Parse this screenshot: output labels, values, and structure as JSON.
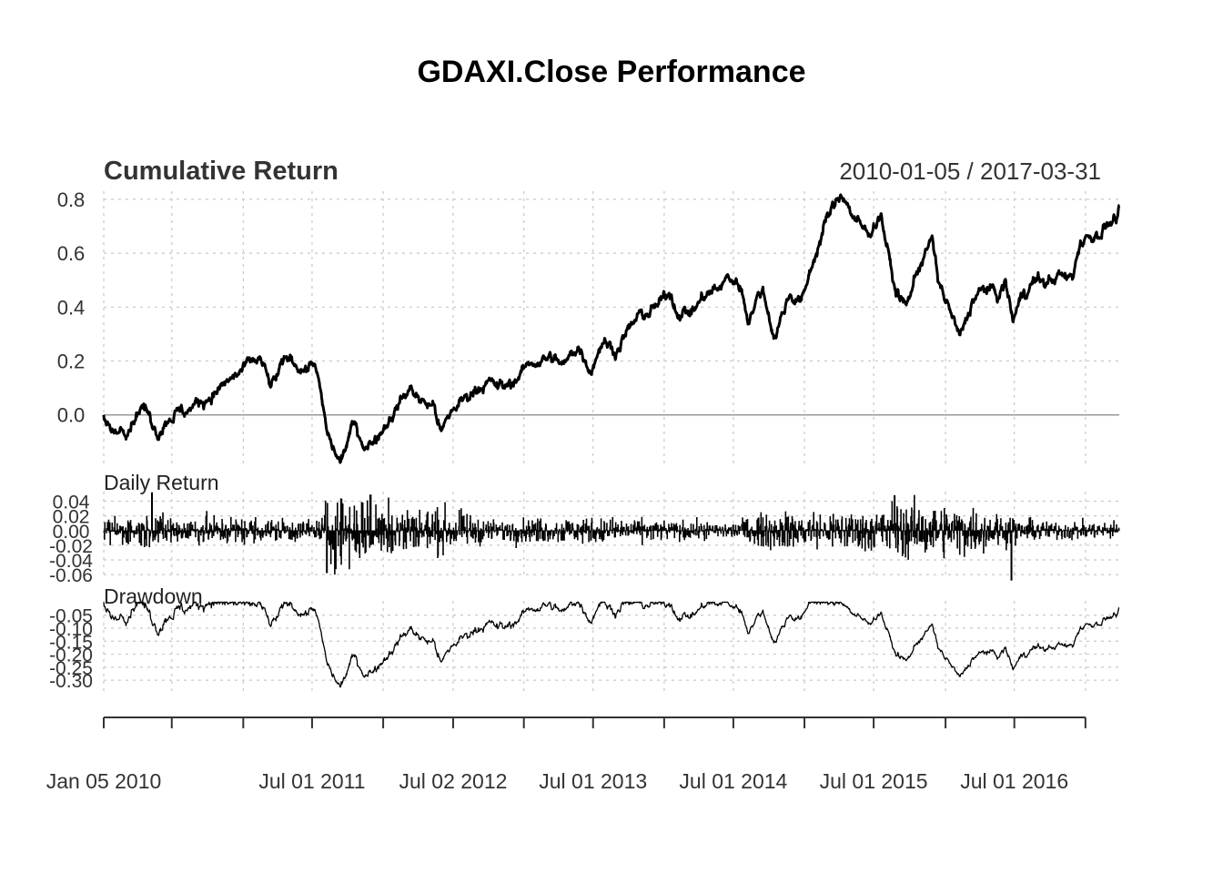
{
  "chart_data": {
    "type": "line",
    "title": "GDAXI.Close Performance",
    "date_range": "2010-01-05 / 2017-03-31",
    "x_start": "2010-01-05",
    "x_end": "2017-03-31",
    "x_tick_labels": [
      {
        "date": "2010-01-05",
        "label": "Jan 05 2010"
      },
      {
        "date": "2011-07-01",
        "label": "Jul 01 2011"
      },
      {
        "date": "2012-07-02",
        "label": "Jul 02 2012"
      },
      {
        "date": "2013-07-01",
        "label": "Jul 01 2013"
      },
      {
        "date": "2014-07-01",
        "label": "Jul 01 2014"
      },
      {
        "date": "2015-07-01",
        "label": "Jul 01 2015"
      },
      {
        "date": "2016-07-01",
        "label": "Jul 01 2016"
      }
    ],
    "x_tick_marks": [
      "2010-01-05",
      "2010-07-01",
      "2011-01-03",
      "2011-07-01",
      "2012-01-02",
      "2012-07-02",
      "2013-01-02",
      "2013-07-01",
      "2014-01-02",
      "2014-07-01",
      "2015-01-02",
      "2015-07-01",
      "2016-01-04",
      "2016-07-01",
      "2017-01-02"
    ],
    "panels": [
      {
        "name": "Cumulative Return",
        "ylim": [
          -0.19,
          0.83
        ],
        "y_ticks": [
          0.8,
          0.6,
          0.4,
          0.2,
          0.0
        ],
        "y_tick_labels": [
          "0.8",
          "0.6",
          "0.4",
          "0.2",
          "0.0"
        ],
        "series": [
          {
            "values": [
              [
                "2010-01-05",
                0.0
              ],
              [
                "2010-02-05",
                -0.09
              ],
              [
                "2010-03-15",
                -0.02
              ],
              [
                "2010-04-15",
                0.04
              ],
              [
                "2010-05-25",
                -0.06
              ],
              [
                "2010-06-25",
                0.0
              ],
              [
                "2010-08-15",
                0.02
              ],
              [
                "2010-09-15",
                0.05
              ],
              [
                "2010-10-15",
                0.08
              ],
              [
                "2010-11-15",
                0.11
              ],
              [
                "2010-12-20",
                0.15
              ],
              [
                "2011-01-25",
                0.19
              ],
              [
                "2011-02-15",
                0.21
              ],
              [
                "2011-03-16",
                0.1
              ],
              [
                "2011-04-15",
                0.18
              ],
              [
                "2011-05-02",
                0.21
              ],
              [
                "2011-06-15",
                0.17
              ],
              [
                "2011-07-08",
                0.2
              ],
              [
                "2011-08-10",
                -0.08
              ],
              [
                "2011-09-12",
                -0.18
              ],
              [
                "2011-10-15",
                -0.04
              ],
              [
                "2011-11-23",
                -0.12
              ],
              [
                "2011-12-30",
                -0.05
              ],
              [
                "2012-02-15",
                0.05
              ],
              [
                "2012-03-16",
                0.1
              ],
              [
                "2012-04-10",
                0.05
              ],
              [
                "2012-05-15",
                0.03
              ],
              [
                "2012-06-01",
                -0.07
              ],
              [
                "2012-07-01",
                0.02
              ],
              [
                "2012-09-15",
                0.12
              ],
              [
                "2012-11-15",
                0.1
              ],
              [
                "2012-12-30",
                0.16
              ],
              [
                "2013-01-25",
                0.2
              ],
              [
                "2013-03-15",
                0.21
              ],
              [
                "2013-04-18",
                0.18
              ],
              [
                "2013-05-22",
                0.26
              ],
              [
                "2013-06-25",
                0.17
              ],
              [
                "2013-07-25",
                0.28
              ],
              [
                "2013-08-30",
                0.24
              ],
              [
                "2013-09-20",
                0.29
              ],
              [
                "2013-10-25",
                0.36
              ],
              [
                "2013-12-15",
                0.4
              ],
              [
                "2014-01-20",
                0.46
              ],
              [
                "2014-02-03",
                0.39
              ],
              [
                "2014-03-14",
                0.38
              ],
              [
                "2014-04-15",
                0.44
              ],
              [
                "2014-05-15",
                0.46
              ],
              [
                "2014-06-20",
                0.51
              ],
              [
                "2014-07-20",
                0.48
              ],
              [
                "2014-08-08",
                0.36
              ],
              [
                "2014-09-15",
                0.47
              ],
              [
                "2014-10-16",
                0.29
              ],
              [
                "2014-11-25",
                0.45
              ],
              [
                "2014-12-28",
                0.42
              ],
              [
                "2015-01-20",
                0.55
              ],
              [
                "2015-02-28",
                0.72
              ],
              [
                "2015-04-10",
                0.83
              ],
              [
                "2015-05-15",
                0.72
              ],
              [
                "2015-06-15",
                0.67
              ],
              [
                "2015-07-20",
                0.75
              ],
              [
                "2015-08-24",
                0.47
              ],
              [
                "2015-09-24",
                0.4
              ],
              [
                "2015-10-25",
                0.55
              ],
              [
                "2015-11-30",
                0.65
              ],
              [
                "2015-12-15",
                0.5
              ],
              [
                "2016-01-20",
                0.37
              ],
              [
                "2016-02-11",
                0.28
              ],
              [
                "2016-03-15",
                0.43
              ],
              [
                "2016-04-20",
                0.47
              ],
              [
                "2016-05-20",
                0.44
              ],
              [
                "2016-06-08",
                0.49
              ],
              [
                "2016-06-27",
                0.35
              ],
              [
                "2016-07-25",
                0.46
              ],
              [
                "2016-08-25",
                0.5
              ],
              [
                "2016-09-25",
                0.49
              ],
              [
                "2016-10-25",
                0.52
              ],
              [
                "2016-11-15",
                0.5
              ],
              [
                "2016-12-01",
                0.52
              ],
              [
                "2016-12-20",
                0.65
              ],
              [
                "2017-01-25",
                0.67
              ],
              [
                "2017-02-25",
                0.7
              ],
              [
                "2017-03-31",
                0.74
              ]
            ]
          }
        ]
      },
      {
        "name": "Daily Return",
        "ylim": [
          -0.066,
          0.053
        ],
        "y_ticks": [
          0.04,
          0.02,
          0.0,
          -0.02,
          -0.04,
          -0.06
        ],
        "y_tick_labels": [
          "0.04",
          "0.02",
          "0.00",
          "-0.02",
          "-0.04",
          "-0.06"
        ],
        "volatility_profile": [
          [
            "2010-01-05",
            0.015
          ],
          [
            "2010-06-01",
            0.018
          ],
          [
            "2011-07-15",
            0.012
          ],
          [
            "2011-08-15",
            0.045
          ],
          [
            "2011-12-30",
            0.03
          ],
          [
            "2012-06-30",
            0.022
          ],
          [
            "2012-09-30",
            0.012
          ],
          [
            "2013-06-01",
            0.015
          ],
          [
            "2014-06-01",
            0.009
          ],
          [
            "2014-10-15",
            0.02
          ],
          [
            "2015-06-01",
            0.022
          ],
          [
            "2015-09-01",
            0.03
          ],
          [
            "2016-03-01",
            0.026
          ],
          [
            "2016-09-01",
            0.011
          ],
          [
            "2017-03-31",
            0.009
          ]
        ],
        "extremes": [
          [
            "2010-05-10",
            0.052
          ],
          [
            "2011-08-08",
            -0.058
          ],
          [
            "2011-11-30",
            0.049
          ],
          [
            "2012-01-15",
            0.045
          ],
          [
            "2015-08-24",
            0.048
          ],
          [
            "2016-06-24",
            -0.068
          ]
        ]
      },
      {
        "name": "Drawdown",
        "ylim": [
          -0.345,
          0.005
        ],
        "y_ticks": [
          -0.05,
          -0.1,
          -0.15,
          -0.2,
          -0.25,
          -0.3
        ],
        "y_tick_labels": [
          "-0.05",
          "-0.10",
          "-0.15",
          "-0.20",
          "-0.25",
          "-0.30"
        ]
      }
    ]
  }
}
